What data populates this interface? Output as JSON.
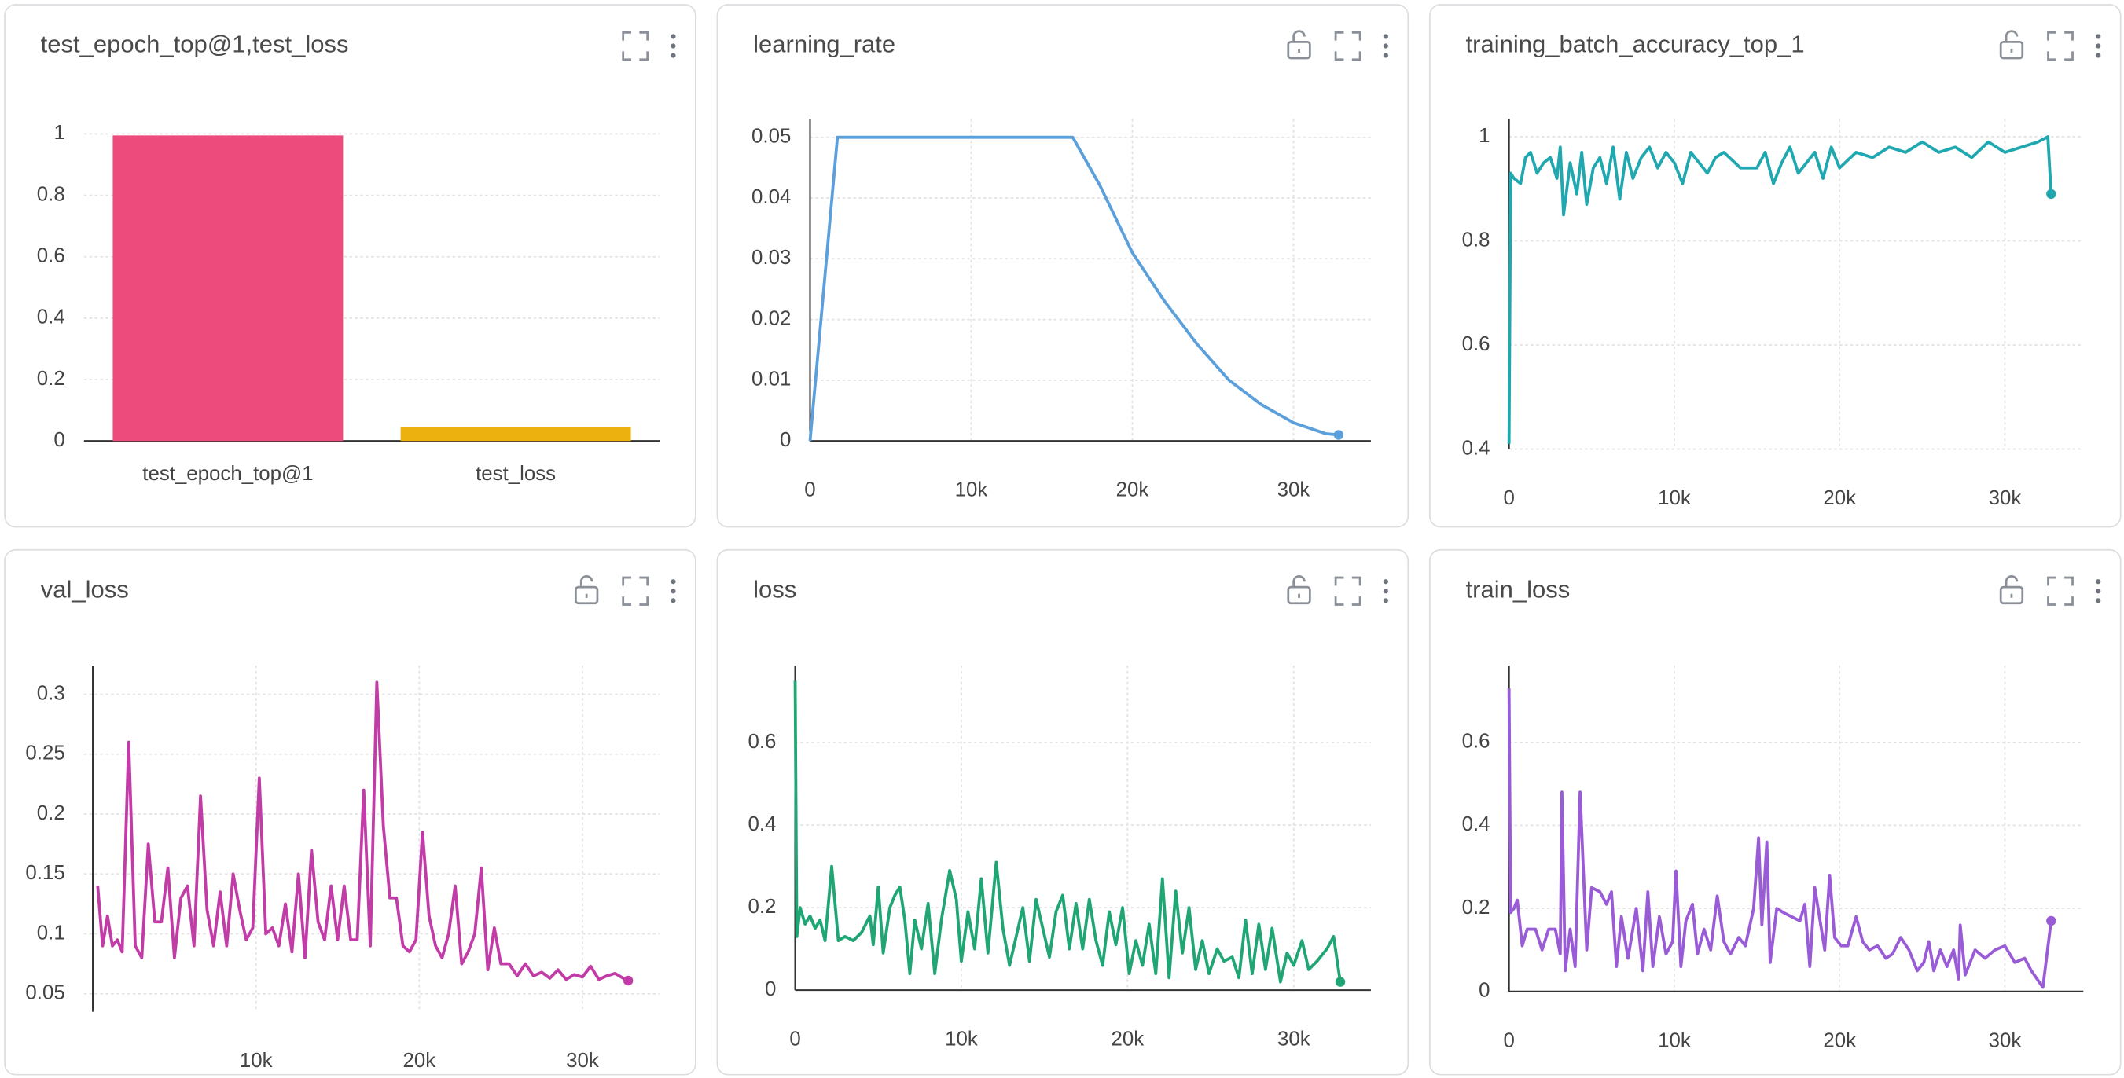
{
  "chart_data": [
    {
      "type": "bar",
      "title": "test_epoch_top@1,test_loss",
      "categories": [
        "test_epoch_top@1",
        "test_loss"
      ],
      "values": [
        0.995,
        0.045
      ],
      "colors": [
        "#ec4b7b",
        "#ecb10f"
      ],
      "ylim": [
        0,
        1
      ],
      "yticks": [
        0,
        0.2,
        0.4,
        0.6,
        0.8,
        1
      ],
      "grid": true
    },
    {
      "type": "line",
      "title": "learning_rate",
      "color": "#5b9fdb",
      "grid": true,
      "x": [
        0,
        1700,
        16300,
        18000,
        20000,
        22000,
        24000,
        26000,
        28000,
        30000,
        32000,
        32800
      ],
      "values": [
        0,
        0.05,
        0.05,
        0.042,
        0.031,
        0.023,
        0.016,
        0.01,
        0.006,
        0.003,
        0.0012,
        0.001
      ],
      "xlim": [
        0,
        34800
      ],
      "ylim": [
        0,
        0.053
      ],
      "xticks": [
        0,
        {
          "value": 10000,
          "label": "10k"
        },
        {
          "value": 20000,
          "label": "20k"
        },
        {
          "value": 30000,
          "label": "30k"
        }
      ],
      "yticks": [
        0,
        0.01,
        0.02,
        0.03,
        0.04,
        0.05
      ]
    },
    {
      "type": "line",
      "title": "training_batch_accuracy_top_1",
      "color": "#20a8b0",
      "grid": true,
      "x": [
        0,
        100,
        300,
        700,
        1000,
        1300,
        1700,
        2100,
        2500,
        2900,
        3100,
        3300,
        3700,
        4100,
        4400,
        4700,
        5100,
        5500,
        5900,
        6300,
        6700,
        7100,
        7500,
        8000,
        8500,
        9000,
        9500,
        10000,
        10500,
        11000,
        11500,
        12000,
        12500,
        13000,
        14000,
        15000,
        15500,
        16000,
        16500,
        17000,
        17500,
        18000,
        18500,
        19000,
        19500,
        20000,
        21000,
        22000,
        23000,
        24000,
        25000,
        26000,
        27000,
        28000,
        29000,
        30000,
        31000,
        32000,
        32600,
        32800
      ],
      "values": [
        0.41,
        0.93,
        0.92,
        0.91,
        0.96,
        0.97,
        0.93,
        0.95,
        0.96,
        0.92,
        0.98,
        0.85,
        0.95,
        0.89,
        0.97,
        0.87,
        0.94,
        0.96,
        0.91,
        0.98,
        0.88,
        0.97,
        0.92,
        0.96,
        0.98,
        0.94,
        0.97,
        0.95,
        0.91,
        0.97,
        0.95,
        0.93,
        0.96,
        0.97,
        0.94,
        0.94,
        0.97,
        0.91,
        0.95,
        0.98,
        0.93,
        0.95,
        0.97,
        0.92,
        0.98,
        0.94,
        0.97,
        0.96,
        0.98,
        0.97,
        0.99,
        0.97,
        0.98,
        0.96,
        0.99,
        0.97,
        0.98,
        0.99,
        1.0,
        0.89
      ],
      "xlim": [
        0,
        34750
      ],
      "ylim": [
        0.4,
        1.034
      ],
      "xticks": [
        0,
        {
          "value": 10000,
          "label": "10k"
        },
        {
          "value": 20000,
          "label": "20k"
        },
        {
          "value": 30000,
          "label": "30k"
        }
      ],
      "yticks": [
        0.4,
        0.6,
        0.8,
        1
      ]
    },
    {
      "type": "line",
      "title": "val_loss",
      "color": "#c13ca6",
      "grid": true,
      "x": [
        300,
        600,
        900,
        1200,
        1500,
        1800,
        2200,
        2600,
        3000,
        3400,
        3800,
        4200,
        4600,
        5000,
        5400,
        5800,
        6200,
        6600,
        7000,
        7400,
        7800,
        8200,
        8600,
        9000,
        9400,
        9800,
        10200,
        10600,
        11000,
        11400,
        11800,
        12200,
        12600,
        13000,
        13400,
        13800,
        14200,
        14600,
        15000,
        15400,
        15800,
        16200,
        16600,
        17000,
        17400,
        17800,
        18200,
        18600,
        19000,
        19400,
        19800,
        20200,
        20600,
        21000,
        21400,
        21800,
        22200,
        22600,
        23000,
        23400,
        23800,
        24200,
        24600,
        25000,
        25500,
        26000,
        26500,
        27000,
        27500,
        28000,
        28500,
        29000,
        29500,
        30000,
        30500,
        31000,
        31500,
        32000,
        32500,
        32800
      ],
      "values": [
        0.14,
        0.09,
        0.115,
        0.09,
        0.095,
        0.085,
        0.26,
        0.09,
        0.08,
        0.175,
        0.11,
        0.11,
        0.155,
        0.08,
        0.13,
        0.14,
        0.09,
        0.215,
        0.12,
        0.09,
        0.135,
        0.09,
        0.15,
        0.12,
        0.095,
        0.105,
        0.23,
        0.1,
        0.105,
        0.09,
        0.125,
        0.085,
        0.15,
        0.08,
        0.17,
        0.11,
        0.095,
        0.14,
        0.095,
        0.14,
        0.095,
        0.095,
        0.22,
        0.09,
        0.31,
        0.19,
        0.13,
        0.13,
        0.09,
        0.085,
        0.095,
        0.185,
        0.115,
        0.09,
        0.08,
        0.1,
        0.14,
        0.075,
        0.085,
        0.1,
        0.155,
        0.07,
        0.105,
        0.075,
        0.075,
        0.065,
        0.075,
        0.065,
        0.068,
        0.063,
        0.07,
        0.062,
        0.066,
        0.064,
        0.073,
        0.062,
        0.065,
        0.067,
        0.063,
        0.061
      ],
      "xlim": [
        -540,
        34730
      ],
      "ylim": [
        0.035,
        0.324
      ],
      "xticks": [
        {
          "value": 10000,
          "label": "10k"
        },
        {
          "value": 20000,
          "label": "20k"
        },
        {
          "value": 30000,
          "label": "30k"
        }
      ],
      "yticks": [
        0.05,
        0.1,
        0.15,
        0.2,
        0.25,
        0.3
      ]
    },
    {
      "type": "line",
      "title": "loss",
      "color": "#1fa674",
      "grid": true,
      "x": [
        0,
        100,
        300,
        600,
        900,
        1200,
        1500,
        1800,
        2200,
        2600,
        3000,
        3500,
        4000,
        4500,
        4700,
        5000,
        5300,
        5700,
        6000,
        6300,
        6600,
        6900,
        7200,
        7600,
        8000,
        8400,
        8800,
        9300,
        9700,
        10000,
        10400,
        10800,
        11200,
        11600,
        12100,
        12500,
        12900,
        13300,
        13700,
        14100,
        14500,
        14900,
        15300,
        15700,
        16100,
        16500,
        16900,
        17300,
        17700,
        18100,
        18500,
        18900,
        19300,
        19700,
        20100,
        20500,
        20900,
        21300,
        21700,
        22100,
        22500,
        22900,
        23300,
        23700,
        24100,
        24500,
        24900,
        25400,
        25800,
        26300,
        26700,
        27100,
        27500,
        27900,
        28300,
        28700,
        29200,
        29600,
        30000,
        30500,
        30900,
        31400,
        32000,
        32400,
        32800
      ],
      "values": [
        0.75,
        0.13,
        0.2,
        0.16,
        0.18,
        0.15,
        0.17,
        0.12,
        0.3,
        0.12,
        0.13,
        0.12,
        0.14,
        0.18,
        0.11,
        0.25,
        0.09,
        0.2,
        0.23,
        0.25,
        0.17,
        0.04,
        0.17,
        0.1,
        0.21,
        0.04,
        0.17,
        0.29,
        0.22,
        0.07,
        0.19,
        0.1,
        0.27,
        0.09,
        0.31,
        0.15,
        0.06,
        0.13,
        0.2,
        0.07,
        0.22,
        0.15,
        0.08,
        0.19,
        0.23,
        0.1,
        0.21,
        0.1,
        0.22,
        0.12,
        0.06,
        0.19,
        0.11,
        0.2,
        0.04,
        0.12,
        0.06,
        0.16,
        0.04,
        0.27,
        0.03,
        0.24,
        0.09,
        0.2,
        0.05,
        0.12,
        0.04,
        0.1,
        0.07,
        0.08,
        0.03,
        0.17,
        0.04,
        0.16,
        0.05,
        0.15,
        0.02,
        0.09,
        0.06,
        0.12,
        0.05,
        0.07,
        0.1,
        0.13,
        0.02
      ],
      "xlim": [
        0,
        34640
      ],
      "ylim": [
        0,
        0.787
      ],
      "xticks": [
        0,
        {
          "value": 10000,
          "label": "10k"
        },
        {
          "value": 20000,
          "label": "20k"
        },
        {
          "value": 30000,
          "label": "30k"
        }
      ],
      "yticks": [
        0,
        0.2,
        0.4,
        0.6
      ]
    },
    {
      "type": "line",
      "title": "train_loss",
      "color": "#9a5bd6",
      "grid": true,
      "x": [
        0,
        100,
        300,
        500,
        800,
        1100,
        1600,
        2000,
        2400,
        2800,
        3100,
        3200,
        3400,
        3700,
        4000,
        4300,
        4700,
        5000,
        5500,
        5900,
        6200,
        6500,
        6800,
        7200,
        7700,
        8100,
        8400,
        8700,
        9100,
        9500,
        9900,
        10100,
        10400,
        10700,
        11100,
        11400,
        11800,
        12200,
        12600,
        13000,
        13400,
        13900,
        14300,
        14800,
        15100,
        15300,
        15600,
        15800,
        16200,
        16600,
        17100,
        17600,
        17900,
        18200,
        18500,
        18900,
        19100,
        19400,
        19700,
        20100,
        20500,
        21000,
        21400,
        21800,
        22300,
        22800,
        23200,
        23700,
        24200,
        24700,
        25100,
        25400,
        25700,
        26100,
        26500,
        26900,
        27200,
        27300,
        27600,
        28200,
        28800,
        29400,
        30000,
        30600,
        31200,
        31600,
        32300,
        32800
      ],
      "values": [
        0.73,
        0.19,
        0.2,
        0.22,
        0.11,
        0.15,
        0.15,
        0.1,
        0.15,
        0.15,
        0.09,
        0.48,
        0.05,
        0.15,
        0.06,
        0.48,
        0.1,
        0.25,
        0.24,
        0.21,
        0.24,
        0.06,
        0.18,
        0.08,
        0.2,
        0.05,
        0.24,
        0.06,
        0.18,
        0.09,
        0.12,
        0.29,
        0.06,
        0.17,
        0.21,
        0.09,
        0.15,
        0.1,
        0.23,
        0.12,
        0.09,
        0.13,
        0.11,
        0.2,
        0.37,
        0.16,
        0.36,
        0.07,
        0.2,
        0.19,
        0.18,
        0.17,
        0.21,
        0.06,
        0.25,
        0.15,
        0.1,
        0.28,
        0.13,
        0.11,
        0.11,
        0.18,
        0.12,
        0.1,
        0.11,
        0.08,
        0.09,
        0.13,
        0.1,
        0.05,
        0.07,
        0.12,
        0.05,
        0.1,
        0.06,
        0.1,
        0.03,
        0.16,
        0.04,
        0.1,
        0.08,
        0.1,
        0.11,
        0.07,
        0.08,
        0.05,
        0.01,
        0.17
      ],
      "xlim": [
        0,
        34750
      ],
      "ylim": [
        0,
        0.785
      ],
      "xticks": [
        0,
        {
          "value": 10000,
          "label": "10k"
        },
        {
          "value": 20000,
          "label": "20k"
        },
        {
          "value": 30000,
          "label": "30k"
        }
      ],
      "yticks": [
        0,
        0.2,
        0.4,
        0.6
      ]
    }
  ]
}
